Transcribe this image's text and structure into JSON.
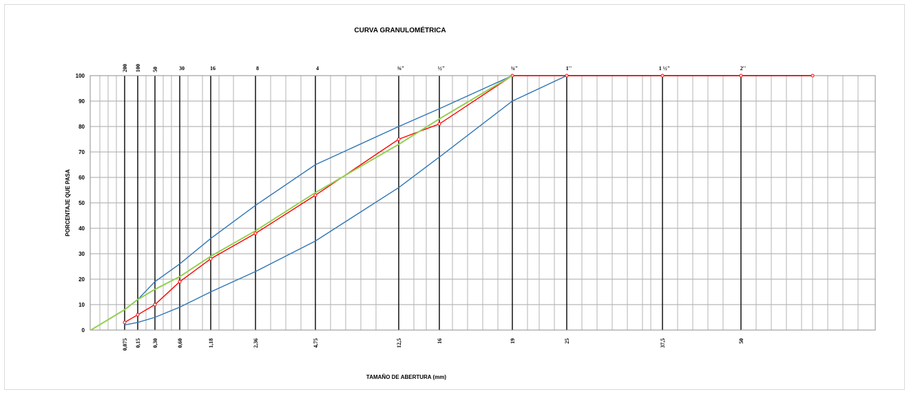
{
  "chart_data": {
    "type": "line",
    "title": "CURVA GRANULOMÉTRICA",
    "xlabel": "TAMAÑO DE ABERTURA  (mm)",
    "ylabel": "PORCENTAJE QUE PASA",
    "ylim": [
      0,
      100
    ],
    "yticks": [
      "0",
      "10",
      "20",
      "30",
      "40",
      "50",
      "60",
      "70",
      "80",
      "90",
      "100"
    ],
    "grid": true,
    "legend": "none",
    "sieves": [
      {
        "mm": 0.075,
        "size_label": "0,075",
        "sieve_label": "200"
      },
      {
        "mm": 0.15,
        "size_label": "0,15",
        "sieve_label": "100"
      },
      {
        "mm": 0.3,
        "size_label": "0,30",
        "sieve_label": "50"
      },
      {
        "mm": 0.6,
        "size_label": "0,60",
        "sieve_label": "30"
      },
      {
        "mm": 1.18,
        "size_label": "1,18",
        "sieve_label": "16"
      },
      {
        "mm": 2.36,
        "size_label": "2,36",
        "sieve_label": "8"
      },
      {
        "mm": 4.75,
        "size_label": "4,75",
        "sieve_label": "4"
      },
      {
        "mm": 12.5,
        "size_label": "12,5",
        "sieve_label": "⅜\""
      },
      {
        "mm": 16,
        "size_label": "16",
        "sieve_label": "½\""
      },
      {
        "mm": 19,
        "size_label": "19",
        "sieve_label": "¾\""
      },
      {
        "mm": 25,
        "size_label": "25",
        "sieve_label": "1''"
      },
      {
        "mm": 37.5,
        "size_label": "37,5",
        "sieve_label": "1 ½\""
      },
      {
        "mm": 50,
        "size_label": "50",
        "sieve_label": "2''"
      }
    ],
    "series": [
      {
        "role": "upper-limit",
        "color": "#2e75b6",
        "markers": false,
        "points": [
          [
            0.075,
            8
          ],
          [
            0.15,
            12
          ],
          [
            0.3,
            19
          ],
          [
            0.6,
            26
          ],
          [
            1.18,
            36
          ],
          [
            2.36,
            49
          ],
          [
            4.75,
            65
          ],
          [
            12.5,
            80
          ],
          [
            16,
            87
          ],
          [
            19,
            100
          ],
          [
            25,
            100
          ],
          [
            37.5,
            100
          ],
          [
            50,
            100
          ],
          [
            80,
            100
          ]
        ]
      },
      {
        "role": "lower-limit",
        "color": "#2e75b6",
        "markers": false,
        "points": [
          [
            0.075,
            2
          ],
          [
            0.15,
            3
          ],
          [
            0.3,
            5
          ],
          [
            0.6,
            9
          ],
          [
            1.18,
            15
          ],
          [
            2.36,
            23
          ],
          [
            4.75,
            35
          ],
          [
            12.5,
            56
          ],
          [
            16,
            68
          ],
          [
            19,
            90
          ],
          [
            25,
            100
          ],
          [
            37.5,
            100
          ],
          [
            50,
            100
          ],
          [
            80,
            100
          ]
        ]
      },
      {
        "role": "sample",
        "color": "#ff0000",
        "markers": true,
        "points": [
          [
            0.075,
            3
          ],
          [
            0.15,
            6
          ],
          [
            0.3,
            10
          ],
          [
            0.6,
            19
          ],
          [
            1.18,
            28
          ],
          [
            2.36,
            38
          ],
          [
            4.75,
            53
          ],
          [
            12.5,
            75
          ],
          [
            16,
            81
          ],
          [
            19,
            100
          ],
          [
            25,
            100
          ],
          [
            37.5,
            100
          ],
          [
            50,
            100
          ],
          [
            80,
            100
          ]
        ]
      },
      {
        "role": "fitted",
        "color": "#92d050",
        "markers": false,
        "points": [
          [
            0.045,
            0
          ],
          [
            0.075,
            8
          ],
          [
            0.15,
            12
          ],
          [
            0.3,
            16
          ],
          [
            0.6,
            21
          ],
          [
            1.18,
            29
          ],
          [
            2.36,
            39
          ],
          [
            4.75,
            54
          ],
          [
            12.5,
            73
          ],
          [
            16,
            83
          ],
          [
            19,
            100
          ]
        ]
      }
    ]
  }
}
